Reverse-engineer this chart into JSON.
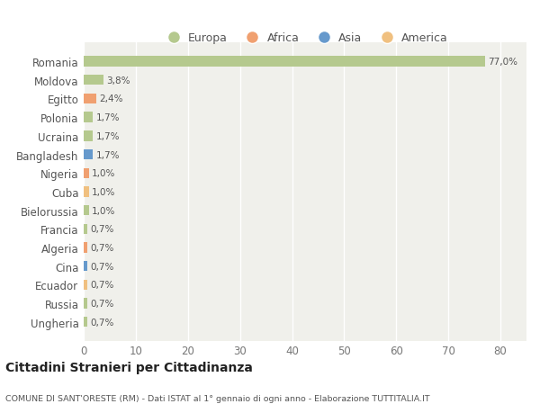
{
  "categories": [
    "Ungheria",
    "Russia",
    "Ecuador",
    "Cina",
    "Algeria",
    "Francia",
    "Bielorussia",
    "Cuba",
    "Nigeria",
    "Bangladesh",
    "Ucraina",
    "Polonia",
    "Egitto",
    "Moldova",
    "Romania"
  ],
  "values": [
    0.7,
    0.7,
    0.7,
    0.7,
    0.7,
    0.7,
    1.0,
    1.0,
    1.0,
    1.7,
    1.7,
    1.7,
    2.4,
    3.8,
    77.0
  ],
  "labels": [
    "0,7%",
    "0,7%",
    "0,7%",
    "0,7%",
    "0,7%",
    "0,7%",
    "1,0%",
    "1,0%",
    "1,0%",
    "1,7%",
    "1,7%",
    "1,7%",
    "2,4%",
    "3,8%",
    "77,0%"
  ],
  "colors": [
    "#b5c98e",
    "#b5c98e",
    "#f0c080",
    "#6699cc",
    "#f0a070",
    "#b5c98e",
    "#b5c98e",
    "#f0c080",
    "#f0a070",
    "#6699cc",
    "#b5c98e",
    "#b5c98e",
    "#f0a070",
    "#b5c98e",
    "#b5c98e"
  ],
  "continent_colors": {
    "Europa": "#b5c98e",
    "Africa": "#f0a070",
    "Asia": "#6699cc",
    "America": "#f0c080"
  },
  "xlim": [
    0,
    85
  ],
  "xticks": [
    0,
    10,
    20,
    30,
    40,
    50,
    60,
    70,
    80
  ],
  "chart_bg": "#f0f0eb",
  "fig_bg": "#ffffff",
  "grid_color": "#ffffff",
  "title": "Cittadini Stranieri per Cittadinanza",
  "subtitle": "COMUNE DI SANT'ORESTE (RM) - Dati ISTAT al 1° gennaio di ogni anno - Elaborazione TUTTITALIA.IT"
}
